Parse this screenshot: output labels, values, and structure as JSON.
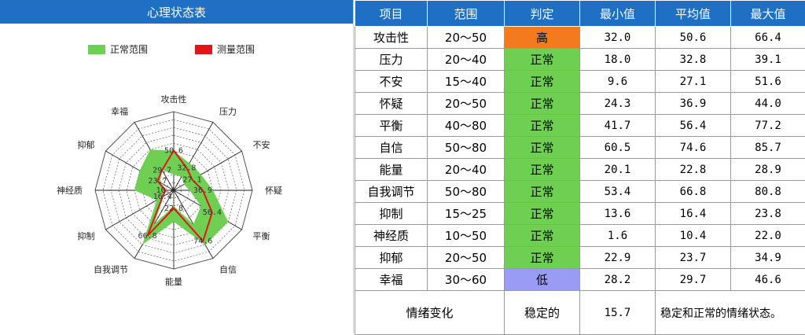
{
  "header": {
    "title": "心理状态表"
  },
  "legend": {
    "normal": "正常范围",
    "measured": "测量范围"
  },
  "colors": {
    "header": "#1f6fc4",
    "normal": "#6fcf52",
    "measured": "#e0161b",
    "high": "#f47a1f",
    "low": "#9a9bf5"
  },
  "table": {
    "headers": [
      "项目",
      "范围",
      "判定",
      "最小值",
      "平均值",
      "最大值"
    ],
    "rows": [
      {
        "name": "攻击性",
        "range": "20～50",
        "judge": "高",
        "min": "32.0",
        "avg": "50.6",
        "max": "66.4",
        "status": "high"
      },
      {
        "name": "压力",
        "range": "20～40",
        "judge": "正常",
        "min": "18.0",
        "avg": "32.8",
        "max": "39.1",
        "status": "normal"
      },
      {
        "name": "不安",
        "range": "15～40",
        "judge": "正常",
        "min": "9.6",
        "avg": "27.1",
        "max": "51.6",
        "status": "normal"
      },
      {
        "name": "怀疑",
        "range": "20～50",
        "judge": "正常",
        "min": "24.3",
        "avg": "36.9",
        "max": "44.0",
        "status": "normal"
      },
      {
        "name": "平衡",
        "range": "40～80",
        "judge": "正常",
        "min": "41.7",
        "avg": "56.4",
        "max": "77.2",
        "status": "normal"
      },
      {
        "name": "自信",
        "range": "50～80",
        "judge": "正常",
        "min": "60.5",
        "avg": "74.6",
        "max": "85.7",
        "status": "normal"
      },
      {
        "name": "能量",
        "range": "20～40",
        "judge": "正常",
        "min": "20.1",
        "avg": "22.8",
        "max": "28.9",
        "status": "normal"
      },
      {
        "name": "自我调节",
        "range": "50～80",
        "judge": "正常",
        "min": "53.4",
        "avg": "66.8",
        "max": "80.8",
        "status": "normal"
      },
      {
        "name": "抑制",
        "range": "15～25",
        "judge": "正常",
        "min": "13.6",
        "avg": "16.4",
        "max": "23.8",
        "status": "normal"
      },
      {
        "name": "神经质",
        "range": "10～50",
        "judge": "正常",
        "min": "1.6",
        "avg": "10.4",
        "max": "22.0",
        "status": "normal"
      },
      {
        "name": "抑郁",
        "range": "20～50",
        "judge": "正常",
        "min": "22.9",
        "avg": "23.7",
        "max": "34.9",
        "status": "normal"
      },
      {
        "name": "幸福",
        "range": "30～60",
        "judge": "低",
        "min": "28.2",
        "avg": "29.7",
        "max": "46.6",
        "status": "low"
      }
    ],
    "summary": {
      "label": "情绪变化",
      "judge": "稳定的",
      "value": "15.7",
      "description": "稳定和正常的情绪状态。"
    }
  },
  "chart_data": {
    "type": "radar",
    "axes": [
      "攻击性",
      "压力",
      "不安",
      "怀疑",
      "平衡",
      "自信",
      "能量",
      "自我调节",
      "抑制",
      "神经质",
      "抑郁",
      "幸福"
    ],
    "rmax": 100,
    "rings": 10,
    "series": [
      {
        "name": "正常范围",
        "kind": "band",
        "min": [
          20,
          20,
          15,
          20,
          40,
          50,
          20,
          50,
          15,
          10,
          20,
          30
        ],
        "max": [
          50,
          40,
          40,
          50,
          80,
          80,
          40,
          80,
          25,
          50,
          50,
          60
        ]
      },
      {
        "name": "测量范围",
        "kind": "line",
        "values": [
          50.6,
          32.8,
          27.1,
          36.9,
          56.4,
          74.6,
          22.8,
          66.8,
          16.4,
          10.4,
          23.7,
          29.7
        ]
      }
    ],
    "value_labels": [
      "50.6",
      "32.8",
      "27.1",
      "36.9",
      "56.4",
      "74.6",
      "22.8",
      "66.8",
      "16.4",
      "10.4",
      "23.7",
      "29.7"
    ]
  }
}
